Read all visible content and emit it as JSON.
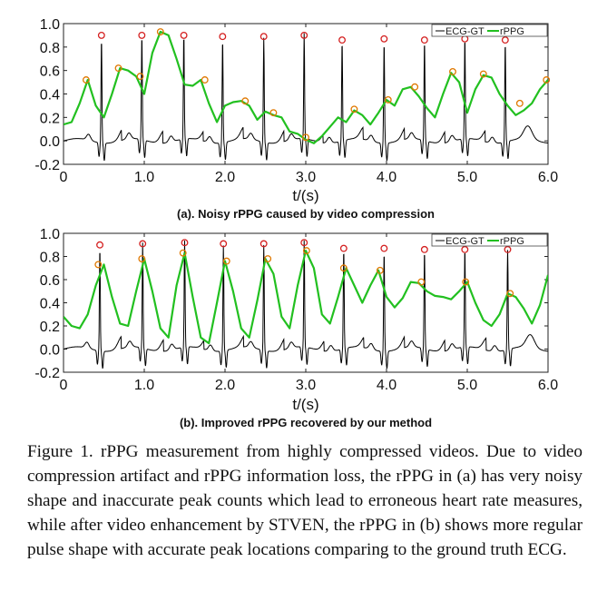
{
  "chart_data": [
    {
      "type": "line",
      "title": "(a). Noisy rPPG caused by video compression",
      "xlabel": "t/(s)",
      "ylabel": "",
      "xlim": [
        0,
        6
      ],
      "ylim": [
        -0.2,
        1.0
      ],
      "xticks": [
        0,
        1,
        2,
        3,
        4,
        5,
        6
      ],
      "xtick_labels": [
        "0",
        "1.0",
        "2.0",
        "3.0",
        "4.0",
        "5.0",
        "6.0"
      ],
      "yticks": [
        -0.2,
        0,
        0.2,
        0.4,
        0.6,
        0.8,
        1.0
      ],
      "ytick_labels": [
        "-0.2",
        "0.0",
        "0.2",
        "0.4",
        "0.6",
        "0.8",
        "1.0"
      ],
      "legend": {
        "position": "top-right",
        "entries": [
          "ECG-GT",
          "rPPG"
        ]
      },
      "series": [
        {
          "name": "ECG-GT",
          "color": "#000000",
          "r_peaks": [
            {
              "t": 0.47,
              "v": 0.9
            },
            {
              "t": 0.97,
              "v": 0.9
            },
            {
              "t": 1.49,
              "v": 0.9
            },
            {
              "t": 1.97,
              "v": 0.89
            },
            {
              "t": 2.48,
              "v": 0.89
            },
            {
              "t": 2.98,
              "v": 0.9
            },
            {
              "t": 3.45,
              "v": 0.86
            },
            {
              "t": 3.97,
              "v": 0.87
            },
            {
              "t": 4.47,
              "v": 0.86
            },
            {
              "t": 4.97,
              "v": 0.87
            },
            {
              "t": 5.47,
              "v": 0.86
            }
          ]
        },
        {
          "name": "rPPG",
          "color": "#22c020",
          "x": [
            0,
            0.1,
            0.2,
            0.3,
            0.4,
            0.5,
            0.6,
            0.7,
            0.8,
            0.9,
            1.0,
            1.1,
            1.2,
            1.3,
            1.4,
            1.5,
            1.6,
            1.7,
            1.8,
            1.9,
            2.0,
            2.1,
            2.2,
            2.3,
            2.4,
            2.5,
            2.6,
            2.7,
            2.8,
            2.9,
            3.0,
            3.1,
            3.2,
            3.3,
            3.4,
            3.5,
            3.6,
            3.7,
            3.8,
            3.9,
            4.0,
            4.1,
            4.2,
            4.3,
            4.4,
            4.5,
            4.6,
            4.7,
            4.8,
            4.9,
            5.0,
            5.1,
            5.2,
            5.3,
            5.4,
            5.5,
            5.6,
            5.7,
            5.8,
            5.9,
            6.0
          ],
          "y": [
            0.14,
            0.16,
            0.32,
            0.52,
            0.3,
            0.2,
            0.4,
            0.62,
            0.6,
            0.55,
            0.4,
            0.75,
            0.93,
            0.9,
            0.7,
            0.48,
            0.47,
            0.52,
            0.32,
            0.16,
            0.3,
            0.33,
            0.34,
            0.3,
            0.18,
            0.25,
            0.22,
            0.2,
            0.08,
            0.06,
            0.01,
            -0.02,
            0.04,
            0.12,
            0.2,
            0.16,
            0.26,
            0.22,
            0.14,
            0.24,
            0.35,
            0.3,
            0.44,
            0.46,
            0.38,
            0.28,
            0.2,
            0.4,
            0.58,
            0.5,
            0.24,
            0.44,
            0.56,
            0.54,
            0.4,
            0.3,
            0.22,
            0.26,
            0.32,
            0.44,
            0.52
          ],
          "peaks": [
            {
              "t": 0.28,
              "v": 0.52
            },
            {
              "t": 0.68,
              "v": 0.62
            },
            {
              "t": 0.95,
              "v": 0.55
            },
            {
              "t": 1.2,
              "v": 0.93
            },
            {
              "t": 1.75,
              "v": 0.52
            },
            {
              "t": 2.25,
              "v": 0.34
            },
            {
              "t": 2.6,
              "v": 0.24
            },
            {
              "t": 3.0,
              "v": 0.03
            },
            {
              "t": 3.6,
              "v": 0.27
            },
            {
              "t": 4.02,
              "v": 0.35
            },
            {
              "t": 4.35,
              "v": 0.46
            },
            {
              "t": 4.82,
              "v": 0.59
            },
            {
              "t": 5.2,
              "v": 0.57
            },
            {
              "t": 5.65,
              "v": 0.32
            },
            {
              "t": 5.98,
              "v": 0.52
            }
          ]
        }
      ]
    },
    {
      "type": "line",
      "title": "(b). Improved rPPG recovered by our method",
      "xlabel": "t/(s)",
      "ylabel": "",
      "xlim": [
        0,
        6
      ],
      "ylim": [
        -0.2,
        1.0
      ],
      "xticks": [
        0,
        1,
        2,
        3,
        4,
        5,
        6
      ],
      "xtick_labels": [
        "0",
        "1.0",
        "2.0",
        "3.0",
        "4.0",
        "5.0",
        "6.0"
      ],
      "yticks": [
        -0.2,
        0,
        0.2,
        0.4,
        0.6,
        0.8,
        1.0
      ],
      "ytick_labels": [
        "-0.2",
        "0.0",
        "0.2",
        "0.4",
        "0.6",
        "0.8",
        "1.0"
      ],
      "legend": {
        "position": "top-right",
        "entries": [
          "ECG-GT",
          "rPPG"
        ]
      },
      "series": [
        {
          "name": "ECG-GT",
          "color": "#000000",
          "r_peaks": [
            {
              "t": 0.45,
              "v": 0.9
            },
            {
              "t": 0.98,
              "v": 0.91
            },
            {
              "t": 1.5,
              "v": 0.92
            },
            {
              "t": 1.98,
              "v": 0.91
            },
            {
              "t": 2.48,
              "v": 0.91
            },
            {
              "t": 2.98,
              "v": 0.92
            },
            {
              "t": 3.47,
              "v": 0.87
            },
            {
              "t": 3.97,
              "v": 0.87
            },
            {
              "t": 4.47,
              "v": 0.86
            },
            {
              "t": 4.97,
              "v": 0.86
            },
            {
              "t": 5.5,
              "v": 0.86
            }
          ]
        },
        {
          "name": "rPPG",
          "color": "#22c020",
          "x": [
            0,
            0.1,
            0.2,
            0.3,
            0.4,
            0.5,
            0.6,
            0.7,
            0.8,
            0.9,
            1.0,
            1.1,
            1.2,
            1.3,
            1.4,
            1.5,
            1.6,
            1.7,
            1.8,
            1.9,
            2.0,
            2.1,
            2.2,
            2.3,
            2.4,
            2.5,
            2.6,
            2.7,
            2.8,
            2.9,
            3.0,
            3.1,
            3.2,
            3.3,
            3.4,
            3.5,
            3.6,
            3.7,
            3.8,
            3.9,
            4.0,
            4.1,
            4.2,
            4.3,
            4.4,
            4.5,
            4.6,
            4.7,
            4.8,
            4.9,
            5.0,
            5.1,
            5.2,
            5.3,
            5.4,
            5.5,
            5.6,
            5.7,
            5.8,
            5.9,
            6.0
          ],
          "y": [
            0.28,
            0.2,
            0.18,
            0.3,
            0.55,
            0.73,
            0.45,
            0.22,
            0.2,
            0.5,
            0.78,
            0.5,
            0.18,
            0.1,
            0.55,
            0.83,
            0.45,
            0.1,
            0.05,
            0.4,
            0.76,
            0.5,
            0.18,
            0.1,
            0.42,
            0.78,
            0.65,
            0.28,
            0.18,
            0.55,
            0.85,
            0.7,
            0.3,
            0.22,
            0.45,
            0.7,
            0.55,
            0.4,
            0.55,
            0.68,
            0.45,
            0.36,
            0.44,
            0.58,
            0.57,
            0.5,
            0.46,
            0.45,
            0.43,
            0.5,
            0.58,
            0.4,
            0.25,
            0.2,
            0.3,
            0.48,
            0.45,
            0.35,
            0.22,
            0.38,
            0.64
          ],
          "peaks": [
            {
              "t": 0.43,
              "v": 0.73
            },
            {
              "t": 0.97,
              "v": 0.78
            },
            {
              "t": 1.48,
              "v": 0.83
            },
            {
              "t": 2.02,
              "v": 0.76
            },
            {
              "t": 2.53,
              "v": 0.78
            },
            {
              "t": 3.01,
              "v": 0.85
            },
            {
              "t": 3.47,
              "v": 0.7
            },
            {
              "t": 3.92,
              "v": 0.68
            },
            {
              "t": 4.43,
              "v": 0.58
            },
            {
              "t": 4.98,
              "v": 0.58
            },
            {
              "t": 5.53,
              "v": 0.48
            }
          ]
        }
      ]
    }
  ],
  "caption": "Figure 1.  rPPG measurement from highly compressed videos. Due to video compression artifact and rPPG information loss, the rPPG in (a) has very noisy shape and inaccurate peak counts which lead to erroneous heart rate measures, while after video enhancement by STVEN, the rPPG in (b) shows more regular pulse shape with accurate peak locations comparing to the ground truth ECG.",
  "colors": {
    "ecg": "#000000",
    "rppg": "#22c020",
    "ecg_marker": "#d42020",
    "rppg_marker": "#e07800"
  }
}
